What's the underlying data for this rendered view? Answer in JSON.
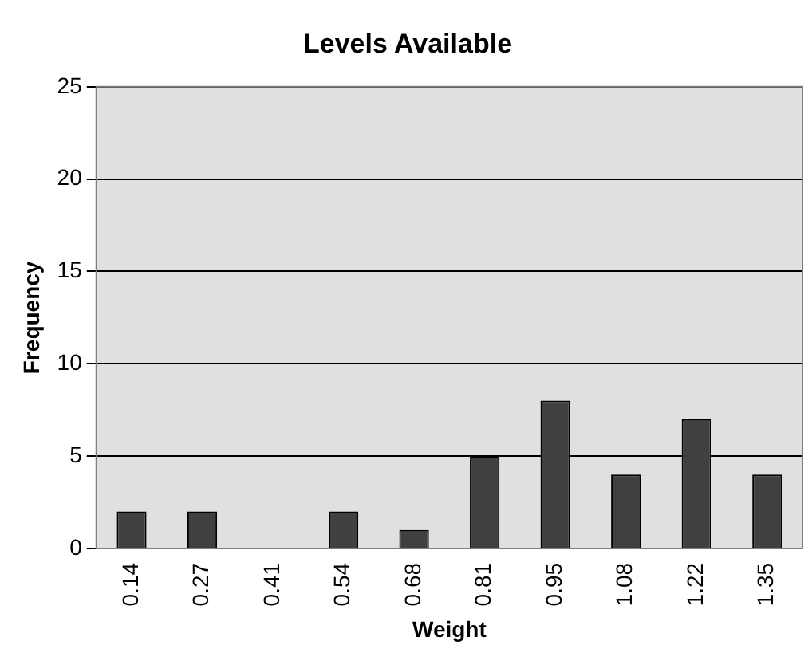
{
  "chart_data": {
    "type": "bar",
    "title": "Levels Available",
    "xlabel": "Weight",
    "ylabel": "Frequency",
    "categories": [
      "0.14",
      "0.27",
      "0.41",
      "0.54",
      "0.68",
      "0.81",
      "0.95",
      "1.08",
      "1.22",
      "1.35"
    ],
    "values": [
      2,
      2,
      0,
      2,
      1,
      5,
      8,
      4,
      7,
      4
    ],
    "color": "#404040",
    "ylim": [
      0,
      25
    ],
    "yticks": [
      0,
      5,
      10,
      15,
      20,
      25
    ],
    "grid": "y",
    "legend": false
  }
}
